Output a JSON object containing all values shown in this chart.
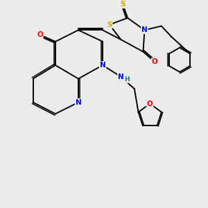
{
  "background_color": "#ebebeb",
  "bond_color": "#000000",
  "atom_colors": {
    "N": "#0000ff",
    "O": "#ff0000",
    "S": "#ccaa00",
    "H": "#008080",
    "C": "#000000"
  }
}
